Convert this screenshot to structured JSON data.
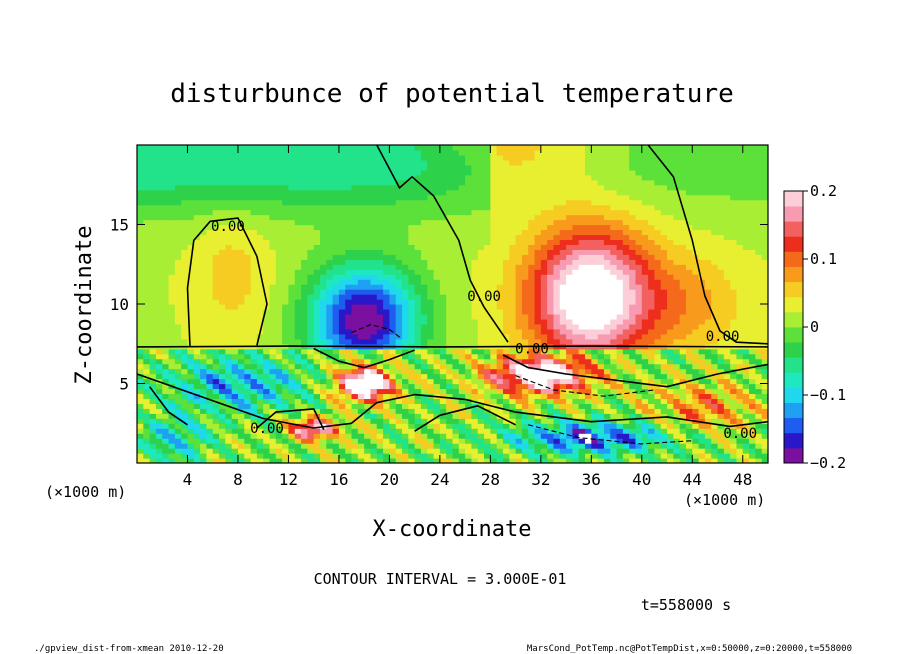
{
  "chart_data": {
    "type": "heatmap",
    "title": "disturbunce of potential temperature",
    "xlabel": "X-coordinate",
    "ylabel": "Z-coordinate",
    "x_unit_left": "(×1000 m)",
    "x_unit_right": "(×1000 m)",
    "xlim": [
      0,
      50
    ],
    "ylim": [
      0,
      20
    ],
    "x_ticks": [
      4,
      8,
      12,
      16,
      20,
      24,
      28,
      32,
      36,
      40,
      44,
      48
    ],
    "y_ticks": [
      5,
      10,
      15
    ],
    "colorbar": {
      "range": [
        -0.2,
        0.2
      ],
      "ticks": [
        {
          "value": 0.2,
          "label": "0.2"
        },
        {
          "value": 0.1,
          "label": "0.1"
        },
        {
          "value": 0,
          "label": "0"
        },
        {
          "value": -0.1,
          "label": "−0.1"
        },
        {
          "value": -0.2,
          "label": "−0.2"
        }
      ],
      "colors": [
        "#7a0fa0",
        "#2a18c8",
        "#1f5cf0",
        "#1fa0f2",
        "#1fd8ee",
        "#1ee8c0",
        "#22e28a",
        "#2ed24a",
        "#5ce03a",
        "#a8ee34",
        "#e8ee30",
        "#f6cc22",
        "#f89a1c",
        "#f56a1a",
        "#ee2e1c",
        "#f26060",
        "#f89ab0",
        "#fccfd8"
      ]
    },
    "contour_labels": [
      {
        "x": 7.2,
        "z": 14.9,
        "text": "0.00"
      },
      {
        "x": 27.5,
        "z": 10.5,
        "text": "0.00"
      },
      {
        "x": 31.3,
        "z": 7.2,
        "text": "0.00"
      },
      {
        "x": 46.4,
        "z": 8.0,
        "text": "0.00"
      },
      {
        "x": 10.3,
        "z": 2.2,
        "text": "0.00"
      },
      {
        "x": 47.8,
        "z": 1.9,
        "text": "0.00"
      }
    ],
    "contour_interval_text": "CONTOUR INTERVAL = 3.000E-01",
    "time_text": "t=558000 s",
    "footer_left": "./gpview_dist-from-xmean  2010-12-20",
    "footer_right": "MarsCond_PotTemp.nc@PotTempDist,x=0:50000,z=0:20000,t=558000"
  }
}
